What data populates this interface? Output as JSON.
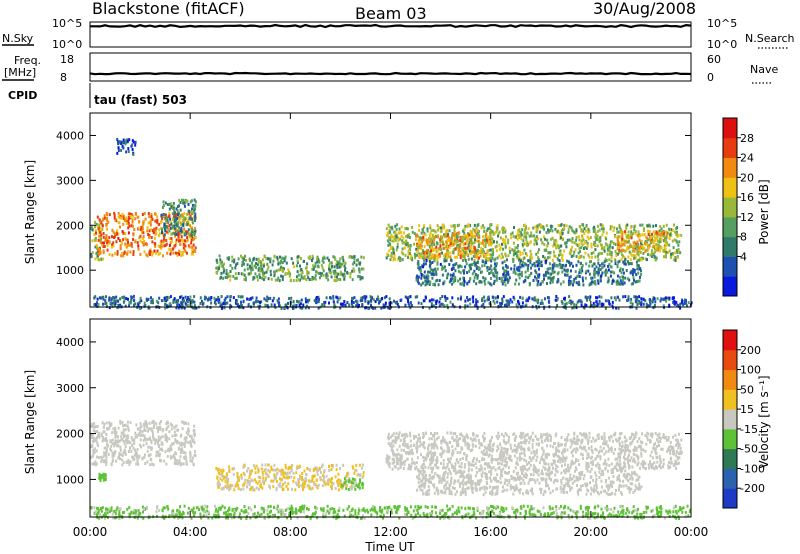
{
  "header": {
    "station": "Blackstone (fitACF)",
    "beam": "Beam 03",
    "date": "30/Aug/2008"
  },
  "summary": {
    "nsky_label": "N.Sky",
    "nsky_ticks": [
      "10^5",
      "10^0"
    ],
    "nsearch_label": "N.Search",
    "nsearch_ticks": [
      "10^5",
      "10^0"
    ],
    "freq_label": "Freq.",
    "freq_unit": "[MHz]",
    "freq_ticks": [
      "18",
      "8"
    ],
    "nave_label": "Nave",
    "nave_ticks": [
      "60",
      "0"
    ],
    "cpid_label": "CPID",
    "cpid_value": "tau (fast) 503"
  },
  "colorbars": {
    "power": {
      "label": "Power [dB]",
      "ticks": [
        "28",
        "24",
        "20",
        "16",
        "12",
        "8",
        "4"
      ],
      "colors": [
        "#0a1adc",
        "#1e50b4",
        "#2f7a6a",
        "#55a060",
        "#9ab837",
        "#eec215",
        "#f28a10",
        "#e83c10",
        "#dd1010"
      ]
    },
    "velocity": {
      "label": "Velocity [m s⁻¹]",
      "ticks": [
        "200",
        "100",
        "50",
        "15",
        "-15",
        "-50",
        "-100",
        "-200"
      ],
      "colors": [
        "#1c3cc8",
        "#2a62b0",
        "#2f7a54",
        "#5ec237",
        "#c8c8c0",
        "#f0c020",
        "#f08a10",
        "#e84a10",
        "#e01010"
      ]
    }
  },
  "axes": {
    "ylabel": "Slant Range [km]",
    "yticks": [
      "4000",
      "3000",
      "2000",
      "1000"
    ],
    "xlabel": "Time UT",
    "xticks": [
      "00:00",
      "04:00",
      "08:00",
      "12:00",
      "16:00",
      "20:00",
      "00:00"
    ]
  },
  "chart_data": [
    {
      "type": "heatmap",
      "panel": "power",
      "xlabel": "Time UT",
      "ylabel": "Slant Range [km]",
      "xlim_hours": [
        0,
        24
      ],
      "ylim_km": [
        180,
        4500
      ],
      "colorbar_label": "Power [dB]",
      "colorbar_range": [
        0,
        30
      ],
      "regions": [
        {
          "t": [
            0.0,
            0.5
          ],
          "r": [
            1250,
            2100
          ],
          "value": 14
        },
        {
          "t": [
            0.2,
            4.2
          ],
          "r": [
            1350,
            2300
          ],
          "value": 22
        },
        {
          "t": [
            2.8,
            4.2
          ],
          "r": [
            1800,
            2600
          ],
          "value": 10
        },
        {
          "t": [
            1.0,
            1.8
          ],
          "r": [
            3600,
            3950
          ],
          "value": 6
        },
        {
          "t": [
            5.0,
            10.9
          ],
          "r": [
            800,
            1350
          ],
          "value": 12
        },
        {
          "t": [
            11.8,
            23.6
          ],
          "r": [
            1250,
            2050
          ],
          "value": 14
        },
        {
          "t": [
            13.0,
            16.0
          ],
          "r": [
            1300,
            1900
          ],
          "value": 20
        },
        {
          "t": [
            13.0,
            22.0
          ],
          "r": [
            700,
            1250
          ],
          "value": 8
        },
        {
          "t": [
            21.0,
            23.0
          ],
          "r": [
            1450,
            1900
          ],
          "value": 20
        },
        {
          "t": [
            0.0,
            24.0
          ],
          "r": [
            180,
            450
          ],
          "value": 6
        }
      ]
    },
    {
      "type": "heatmap",
      "panel": "velocity",
      "xlabel": "Time UT",
      "ylabel": "Slant Range [km]",
      "xlim_hours": [
        0,
        24
      ],
      "ylim_km": [
        180,
        4500
      ],
      "colorbar_label": "Velocity [m s⁻¹]",
      "colorbar_range": [
        -250,
        250
      ],
      "regions": [
        {
          "t": [
            0.0,
            4.2
          ],
          "r": [
            1350,
            2300
          ],
          "value": 0
        },
        {
          "t": [
            0.3,
            0.6
          ],
          "r": [
            1000,
            1150
          ],
          "value": -60
        },
        {
          "t": [
            5.0,
            10.9
          ],
          "r": [
            800,
            1350
          ],
          "value": 30
        },
        {
          "t": [
            10.0,
            10.9
          ],
          "r": [
            800,
            1050
          ],
          "value": -60
        },
        {
          "t": [
            11.8,
            23.6
          ],
          "r": [
            1250,
            2050
          ],
          "value": 0
        },
        {
          "t": [
            13.0,
            22.0
          ],
          "r": [
            700,
            1250
          ],
          "value": 0
        },
        {
          "t": [
            0.0,
            24.0
          ],
          "r": [
            180,
            450
          ],
          "value": -40
        }
      ]
    }
  ]
}
